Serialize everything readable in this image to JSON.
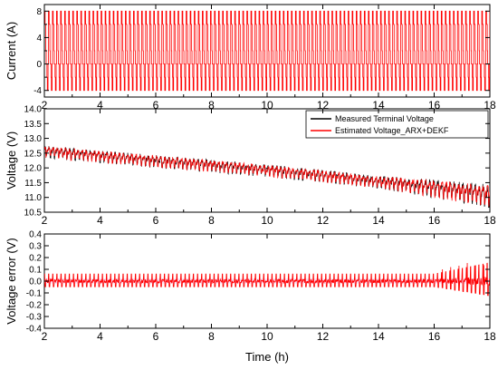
{
  "chart_data": [
    {
      "type": "line",
      "panel": "current",
      "ylabel": "Current (A)",
      "xlim": [
        2,
        18
      ],
      "ylim": [
        -5,
        9
      ],
      "x_ticks": [
        2,
        4,
        6,
        8,
        10,
        12,
        14,
        16,
        18
      ],
      "y_ticks": [
        -4,
        0,
        4,
        8
      ],
      "y_minor_ticks": [
        -2,
        2,
        6
      ],
      "series": [
        {
          "color": "#ff0000",
          "pattern": "repeating pulse profile",
          "levels_A": [
            8,
            6,
            2,
            0,
            -2,
            -4
          ],
          "pulse_cycles": 110
        }
      ]
    },
    {
      "type": "line",
      "panel": "voltage",
      "ylabel": "Voltage (V)",
      "xlim": [
        2,
        18
      ],
      "ylim": [
        10.5,
        14.0
      ],
      "x_ticks": [
        2,
        4,
        6,
        8,
        10,
        12,
        14,
        16,
        18
      ],
      "y_ticks": [
        10.5,
        11.0,
        11.5,
        12.0,
        12.5,
        13.0,
        13.5,
        14.0
      ],
      "legend_position": "top-right",
      "series": [
        {
          "name": "Measured Terminal Voltage",
          "color": "#000000",
          "trend_x": [
            2,
            4,
            6,
            8,
            10,
            12,
            14,
            16,
            18
          ],
          "trend_y": [
            12.55,
            12.38,
            12.22,
            12.07,
            11.9,
            11.72,
            11.52,
            11.3,
            11.05
          ],
          "ripple_amplitude_V": 0.3
        },
        {
          "name": "Estimated Voltage_ARX+DEKF",
          "color": "#ff0000",
          "trend_x": [
            2,
            4,
            6,
            8,
            10,
            12,
            14,
            16,
            18
          ],
          "trend_y": [
            12.55,
            12.38,
            12.22,
            12.07,
            11.9,
            11.72,
            11.52,
            11.3,
            11.05
          ],
          "ripple_amplitude_V": 0.28
        }
      ]
    },
    {
      "type": "line",
      "panel": "voltage_error",
      "ylabel": "Voltage error (V)",
      "xlabel": "Time (h)",
      "xlim": [
        2,
        18
      ],
      "ylim": [
        -0.4,
        0.4
      ],
      "x_ticks": [
        2,
        4,
        6,
        8,
        10,
        12,
        14,
        16,
        18
      ],
      "y_ticks": [
        -0.4,
        -0.3,
        -0.2,
        -0.1,
        0.0,
        0.1,
        0.2,
        0.3,
        0.4
      ],
      "series": [
        {
          "color": "#ff0000",
          "mean_V": 0.0,
          "spike_amplitude_V": 0.06,
          "late_spike_amplitude_V": 0.16
        }
      ]
    }
  ]
}
